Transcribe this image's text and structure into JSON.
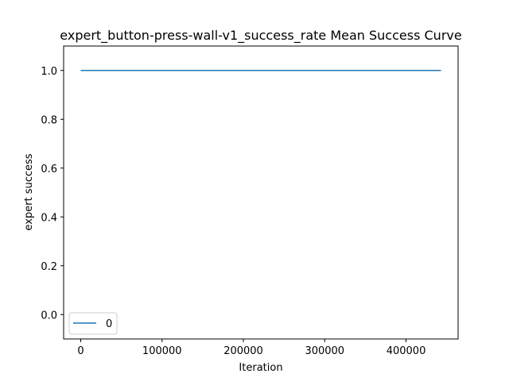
{
  "chart_data": {
    "type": "line",
    "title": "expert_button-press-wall-v1_success_rate Mean Success Curve",
    "xlabel": "Iteration",
    "ylabel": "expert success",
    "xlim": [
      -21000,
      464000
    ],
    "ylim": [
      -0.1,
      1.1
    ],
    "xticks": [
      0,
      100000,
      200000,
      300000,
      400000
    ],
    "xtick_labels": [
      "0",
      "100000",
      "200000",
      "300000",
      "400000"
    ],
    "yticks": [
      0.0,
      0.2,
      0.4,
      0.6,
      0.8,
      1.0
    ],
    "ytick_labels": [
      "0.0",
      "0.2",
      "0.4",
      "0.6",
      "0.8",
      "1.0"
    ],
    "grid": false,
    "legend_position": "lower-left",
    "series": [
      {
        "name": "0",
        "color": "#1f77b4",
        "x": [
          0,
          443000
        ],
        "y": [
          1.0,
          1.0
        ]
      }
    ]
  }
}
